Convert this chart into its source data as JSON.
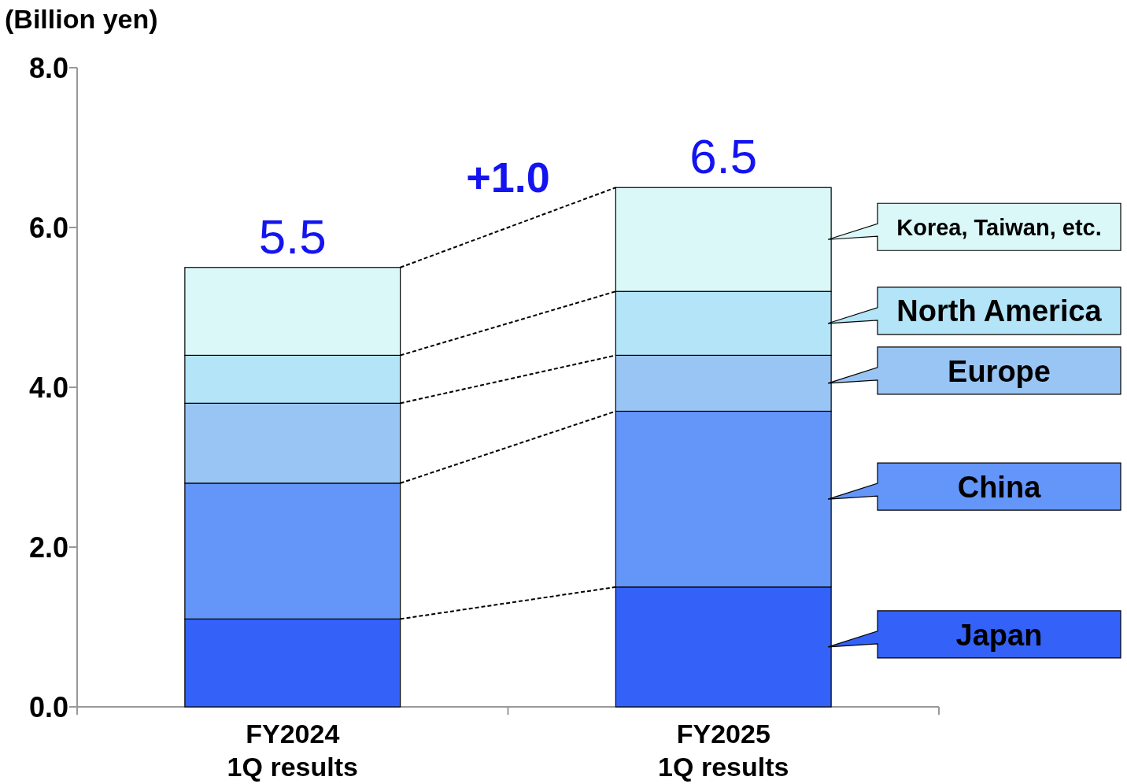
{
  "chart_data": {
    "type": "bar",
    "stacked": true,
    "ylabel": "(Billion yen)",
    "categories": [
      "FY2024\n1Q results",
      "FY2025\n1Q results"
    ],
    "series": [
      {
        "name": "Japan",
        "color": "#3461f8",
        "values": [
          1.1,
          1.5
        ]
      },
      {
        "name": "China",
        "color": "#6495f8",
        "values": [
          1.7,
          2.2
        ]
      },
      {
        "name": "Europe",
        "color": "#99c5f5",
        "values": [
          1.0,
          0.7
        ]
      },
      {
        "name": "North America",
        "color": "#b3e4f7",
        "values": [
          0.6,
          0.8
        ]
      },
      {
        "name": "Korea, Taiwan, etc.",
        "color": "#dbf8f8",
        "values": [
          1.1,
          1.3
        ]
      }
    ],
    "totals": [
      "5.5",
      "6.5"
    ],
    "annotations": [
      "+1.0"
    ],
    "ylim": [
      0,
      8
    ],
    "yticks": [
      {
        "value": 0,
        "label": "0.0"
      },
      {
        "value": 2,
        "label": "2.0"
      },
      {
        "value": 4,
        "label": "4.0"
      },
      {
        "value": 6,
        "label": "6.0"
      },
      {
        "value": 8,
        "label": "8.0"
      }
    ],
    "grid": false,
    "legend": "right"
  }
}
